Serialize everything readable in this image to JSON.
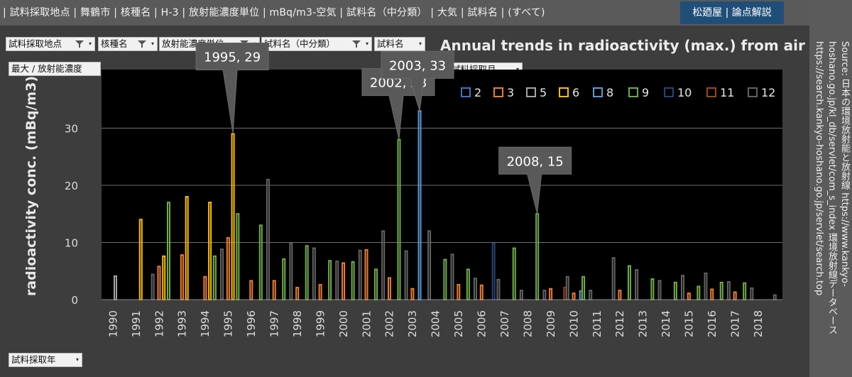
{
  "header": {
    "breadcrumb": "| 試料採取地点 | 舞鶴市 | 核種名 | H-3 | 放射能濃度単位 | mBq/m3-空気 | 試料名（中分類） | 大気 | 試料名 | (すべて)",
    "brand": "松廼屋 | 論点解説"
  },
  "sidebar": {
    "source_text": "Source: 日本の環境放射能と放射線 https://www.kankyo-hoshano.go.jp/kl_db/servlet/com_s_index 環境放射線データベース https://search.kankyo-hoshano.go.jp/servlet/search.top"
  },
  "filters": {
    "location": "試料採取地点",
    "nuclide": "核種名",
    "unit": "放射能濃度単位",
    "sample_mid": "試料名（中分類）",
    "sample": "試料名",
    "value_field": "最大 / 放射能濃度",
    "month_field": "試料採取月",
    "year_field": "試料採取年"
  },
  "chart_data": {
    "type": "bar",
    "title": "Annual trends in radioactivity (max.) from air",
    "ylabel": "radioactivity conc. (mBq/m3)",
    "xlabel": "",
    "ylim": [
      0,
      40
    ],
    "yticks": [
      0,
      10,
      20,
      30
    ],
    "grid": true,
    "legend_position": "top-right",
    "categories": [
      "1990",
      "1991",
      "1992",
      "1993",
      "1994",
      "1995",
      "1996",
      "1997",
      "1998",
      "1999",
      "2000",
      "2001",
      "2002",
      "2003",
      "2004",
      "2005",
      "2006",
      "2007",
      "2008",
      "2009",
      "2010",
      "2011",
      "2012",
      "2013",
      "2014",
      "2015",
      "2016",
      "2017",
      "2018"
    ],
    "series": [
      {
        "name": "2",
        "color": "#4472c4",
        "values": [
          null,
          null,
          null,
          null,
          null,
          null,
          null,
          null,
          null,
          null,
          null,
          null,
          null,
          null,
          null,
          null,
          null,
          null,
          null,
          null,
          null,
          null,
          null,
          null,
          null,
          null,
          null,
          null,
          null
        ]
      },
      {
        "name": "3",
        "color": "#ed7d31",
        "values": [
          null,
          null,
          5.8,
          7.8,
          4.0,
          10.8,
          3.3,
          3.3,
          2.1,
          2.6,
          6.4,
          8.7,
          3.8,
          1.9,
          null,
          2.6,
          2.5,
          null,
          null,
          1.9,
          1.1,
          null,
          1.6,
          null,
          null,
          1.1,
          1.8,
          1.3,
          null
        ]
      },
      {
        "name": "5",
        "color": "#a5a5a5",
        "values": [
          4.1,
          null,
          null,
          null,
          null,
          null,
          null,
          null,
          null,
          null,
          null,
          null,
          null,
          null,
          null,
          null,
          null,
          null,
          null,
          null,
          null,
          null,
          null,
          null,
          null,
          null,
          null,
          null,
          null
        ]
      },
      {
        "name": "6",
        "color": "#ffc000",
        "values": [
          null,
          14,
          7.6,
          18,
          17,
          29,
          null,
          null,
          null,
          null,
          null,
          null,
          null,
          null,
          null,
          null,
          null,
          null,
          null,
          null,
          null,
          null,
          null,
          null,
          null,
          null,
          null,
          null,
          null
        ]
      },
      {
        "name": "8",
        "color": "#5b9bd5",
        "values": [
          null,
          null,
          null,
          null,
          null,
          null,
          null,
          null,
          null,
          null,
          null,
          null,
          null,
          33,
          null,
          null,
          null,
          null,
          null,
          null,
          1.5,
          null,
          null,
          null,
          null,
          null,
          null,
          null,
          null
        ]
      },
      {
        "name": "9",
        "color": "#70ad47",
        "values": [
          null,
          null,
          17,
          null,
          7.6,
          15,
          13,
          7.1,
          9.4,
          6.8,
          6.6,
          5.3,
          28,
          null,
          7.0,
          5.3,
          null,
          9.0,
          15,
          null,
          4.0,
          null,
          5.9,
          3.6,
          3.0,
          2.3,
          3.0,
          2.9,
          null
        ]
      },
      {
        "name": "10",
        "color": "#264478",
        "values": [
          null,
          null,
          null,
          null,
          null,
          null,
          null,
          null,
          null,
          null,
          null,
          null,
          null,
          null,
          null,
          null,
          9.8,
          null,
          null,
          null,
          null,
          null,
          null,
          null,
          null,
          null,
          null,
          null,
          null
        ]
      },
      {
        "name": "11",
        "color": "#9e480e",
        "values": [
          null,
          null,
          null,
          null,
          null,
          null,
          null,
          null,
          null,
          null,
          null,
          null,
          null,
          null,
          null,
          null,
          null,
          null,
          null,
          2.1,
          null,
          null,
          null,
          null,
          null,
          null,
          null,
          null,
          null
        ]
      },
      {
        "name": "12",
        "color": "#636363",
        "values": [
          null,
          4.4,
          null,
          null,
          8.8,
          null,
          21,
          9.9,
          9.0,
          6.7,
          8.6,
          12,
          8.5,
          12,
          7.9,
          3.7,
          3.5,
          1.6,
          1.6,
          4.0,
          1.6,
          7.3,
          5.2,
          3.3,
          4.2,
          4.6,
          3.1,
          2.0,
          0.8
        ]
      }
    ],
    "annotations": [
      {
        "text": "1995, 29",
        "x": "1995",
        "y": 29
      },
      {
        "text": "2002, 28",
        "x": "2002",
        "y": 28
      },
      {
        "text": "2003, 33",
        "x": "2003",
        "y": 33
      },
      {
        "text": "2008, 15",
        "x": "2008",
        "y": 15
      }
    ]
  }
}
